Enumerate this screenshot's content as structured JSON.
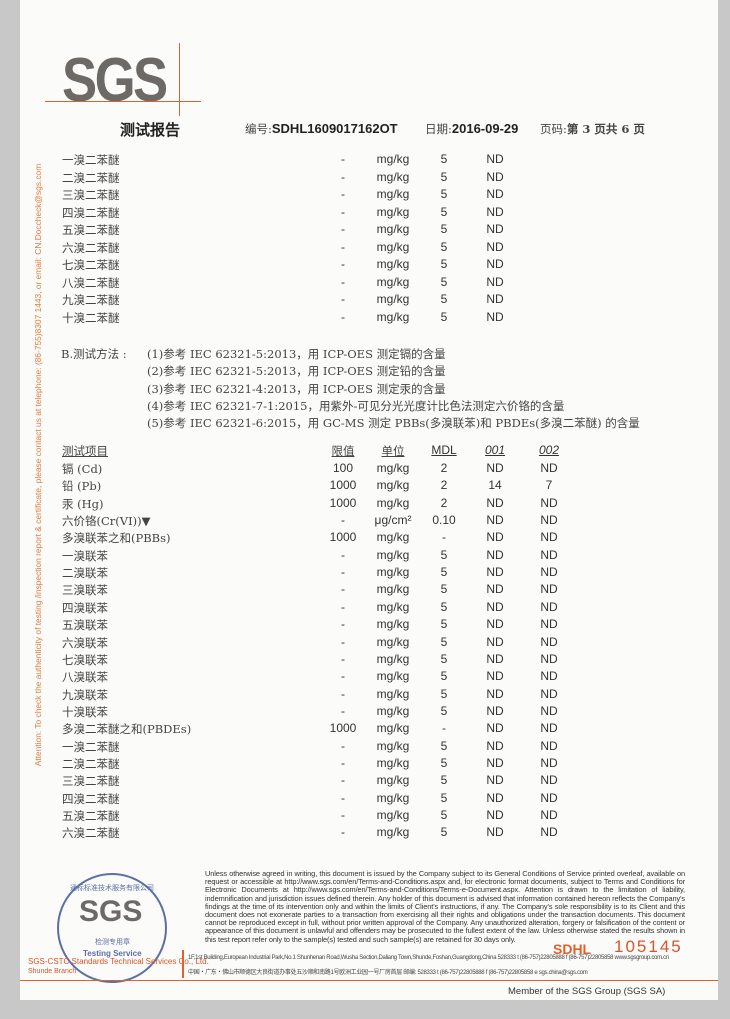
{
  "header": {
    "logo": "SGS",
    "title": "测试报告",
    "report_no_label": "编号:",
    "report_no": "SDHL1609017162OT",
    "date_label": "日期:",
    "date": "2016-09-29",
    "page_label": "页码:",
    "page": "第 3 页共 6 页"
  },
  "top_rows": [
    {
      "item": "一溴二苯醚",
      "limit": "-",
      "unit": "mg/kg",
      "mdl": "5",
      "r001": "ND"
    },
    {
      "item": "二溴二苯醚",
      "limit": "-",
      "unit": "mg/kg",
      "mdl": "5",
      "r001": "ND"
    },
    {
      "item": "三溴二苯醚",
      "limit": "-",
      "unit": "mg/kg",
      "mdl": "5",
      "r001": "ND"
    },
    {
      "item": "四溴二苯醚",
      "limit": "-",
      "unit": "mg/kg",
      "mdl": "5",
      "r001": "ND"
    },
    {
      "item": "五溴二苯醚",
      "limit": "-",
      "unit": "mg/kg",
      "mdl": "5",
      "r001": "ND"
    },
    {
      "item": "六溴二苯醚",
      "limit": "-",
      "unit": "mg/kg",
      "mdl": "5",
      "r001": "ND"
    },
    {
      "item": "七溴二苯醚",
      "limit": "-",
      "unit": "mg/kg",
      "mdl": "5",
      "r001": "ND"
    },
    {
      "item": "八溴二苯醚",
      "limit": "-",
      "unit": "mg/kg",
      "mdl": "5",
      "r001": "ND"
    },
    {
      "item": "九溴二苯醚",
      "limit": "-",
      "unit": "mg/kg",
      "mdl": "5",
      "r001": "ND"
    },
    {
      "item": "十溴二苯醚",
      "limit": "-",
      "unit": "mg/kg",
      "mdl": "5",
      "r001": "ND"
    }
  ],
  "methods": {
    "label": "B.测试方法 :",
    "items": [
      "(1)参考 IEC 62321-5:2013，用 ICP-OES 测定镉的含量",
      "(2)参考 IEC 62321-5:2013，用 ICP-OES 测定铅的含量",
      "(3)参考 IEC 62321-4:2013，用 ICP-OES 测定汞的含量",
      "(4)参考 IEC 62321-7-1:2015，用紫外-可见分光光度计比色法测定六价铬的含量",
      "(5)参考 IEC 62321-6:2015，用 GC-MS 测定 PBBs(多溴联苯)和 PBDEs(多溴二苯醚) 的含量"
    ]
  },
  "table": {
    "headers": {
      "item": "测试项目",
      "limit": "限值",
      "unit": "单位",
      "mdl": "MDL",
      "s1": "001",
      "s2": "002"
    },
    "rows": [
      {
        "item": "镉 (Cd)",
        "limit": "100",
        "unit": "mg/kg",
        "mdl": "2",
        "s1": "ND",
        "s2": "ND"
      },
      {
        "item": "铅 (Pb)",
        "limit": "1000",
        "unit": "mg/kg",
        "mdl": "2",
        "s1": "14",
        "s2": "7"
      },
      {
        "item": "汞 (Hg)",
        "limit": "1000",
        "unit": "mg/kg",
        "mdl": "2",
        "s1": "ND",
        "s2": "ND"
      },
      {
        "item": "六价铬(Cr(VI))▼",
        "limit": "-",
        "unit": "μg/cm²",
        "mdl": "0.10",
        "s1": "ND",
        "s2": "ND"
      },
      {
        "item": "多溴联苯之和(PBBs)",
        "limit": "1000",
        "unit": "mg/kg",
        "mdl": "-",
        "s1": "ND",
        "s2": "ND"
      },
      {
        "item": "一溴联苯",
        "limit": "-",
        "unit": "mg/kg",
        "mdl": "5",
        "s1": "ND",
        "s2": "ND"
      },
      {
        "item": "二溴联苯",
        "limit": "-",
        "unit": "mg/kg",
        "mdl": "5",
        "s1": "ND",
        "s2": "ND"
      },
      {
        "item": "三溴联苯",
        "limit": "-",
        "unit": "mg/kg",
        "mdl": "5",
        "s1": "ND",
        "s2": "ND"
      },
      {
        "item": "四溴联苯",
        "limit": "-",
        "unit": "mg/kg",
        "mdl": "5",
        "s1": "ND",
        "s2": "ND"
      },
      {
        "item": "五溴联苯",
        "limit": "-",
        "unit": "mg/kg",
        "mdl": "5",
        "s1": "ND",
        "s2": "ND"
      },
      {
        "item": "六溴联苯",
        "limit": "-",
        "unit": "mg/kg",
        "mdl": "5",
        "s1": "ND",
        "s2": "ND"
      },
      {
        "item": "七溴联苯",
        "limit": "-",
        "unit": "mg/kg",
        "mdl": "5",
        "s1": "ND",
        "s2": "ND"
      },
      {
        "item": "八溴联苯",
        "limit": "-",
        "unit": "mg/kg",
        "mdl": "5",
        "s1": "ND",
        "s2": "ND"
      },
      {
        "item": "九溴联苯",
        "limit": "-",
        "unit": "mg/kg",
        "mdl": "5",
        "s1": "ND",
        "s2": "ND"
      },
      {
        "item": "十溴联苯",
        "limit": "-",
        "unit": "mg/kg",
        "mdl": "5",
        "s1": "ND",
        "s2": "ND"
      },
      {
        "item": "多溴二苯醚之和(PBDEs)",
        "limit": "1000",
        "unit": "mg/kg",
        "mdl": "-",
        "s1": "ND",
        "s2": "ND"
      },
      {
        "item": "一溴二苯醚",
        "limit": "-",
        "unit": "mg/kg",
        "mdl": "5",
        "s1": "ND",
        "s2": "ND"
      },
      {
        "item": "二溴二苯醚",
        "limit": "-",
        "unit": "mg/kg",
        "mdl": "5",
        "s1": "ND",
        "s2": "ND"
      },
      {
        "item": "三溴二苯醚",
        "limit": "-",
        "unit": "mg/kg",
        "mdl": "5",
        "s1": "ND",
        "s2": "ND"
      },
      {
        "item": "四溴二苯醚",
        "limit": "-",
        "unit": "mg/kg",
        "mdl": "5",
        "s1": "ND",
        "s2": "ND"
      },
      {
        "item": "五溴二苯醚",
        "limit": "-",
        "unit": "mg/kg",
        "mdl": "5",
        "s1": "ND",
        "s2": "ND"
      },
      {
        "item": "六溴二苯醚",
        "limit": "-",
        "unit": "mg/kg",
        "mdl": "5",
        "s1": "ND",
        "s2": "ND"
      }
    ]
  },
  "side_note": "Attention: To check the authenticity of testing /inspection report & certificate, please contact us at telephone: (86-755)8307 1443, or email: CN.Doccheck@sgs.com",
  "disclaimer": "Unless otherwise agreed in writing, this document is issued by the Company subject to its General Conditions of Service printed overleaf, available on request or accessible at http://www.sgs.com/en/Terms-and-Conditions.aspx and, for electronic format documents, subject to Terms and Conditions for Electronic Documents at http://www.sgs.com/en/Terms-and-Conditions/Terms-e-Document.aspx. Attention is drawn to the limitation of liability, indemnification and jurisdiction issues defined therein. Any holder of this document is advised that information contained hereon reflects the Company's findings at the time of its intervention only and within the limits of Client's instructions, if any. The Company's sole responsibility is to its Client and this document does not exonerate parties to a transaction from exercising all their rights and obligations under the transaction documents. This document cannot be reproduced except in full, without prior written approval of the Company. Any unauthorized alteration, forgery or falsification of the content or appearance of this document is unlawful and offenders may be prosecuted to the fullest extent of the law. Unless otherwise stated the results shown in this test report refer only to the sample(s) tested and such sample(s) are retained for 30 days only.",
  "footer": {
    "code": "SDHL",
    "serial": "105145",
    "addr_en": "1F,1st Building,European Industrial Park,No.1 Shunhenan Road,Wusha Section,Daliang Town,Shunde,Foshan,Guangdong,China  528333  t (86-757)22805888  f (86-757)22805858  www.sgsgroup.com.cn",
    "addr_cn": "中国・广东・佛山市顺德区大良街道办事处五沙顺和南路1号欧洲工业园一号厂房首层 邮编: 528333  t (86-757)22805888  f (86-757)22805858  e sgs.china@sgs.com",
    "member": "Member of the SGS Group (SGS SA)"
  },
  "stamp": {
    "ring_text": "通标标准技术服务有限公司",
    "logo": "SGS",
    "cn": "检测专用章",
    "en": "Testing Service",
    "company": "SGS-CSTC Standards Technical Services Co., Ltd.",
    "branch": "Shunde Branch"
  },
  "colors": {
    "accent": "#e2602a",
    "stamp": "#5b6ea8"
  }
}
